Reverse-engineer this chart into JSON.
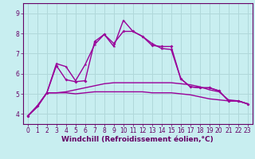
{
  "background_color": "#c8eef0",
  "grid_color": "#b0d8da",
  "line_color": "#990099",
  "spine_color": "#660066",
  "xlabel": "Windchill (Refroidissement éolien,°C)",
  "xlim": [
    -0.5,
    23.5
  ],
  "ylim": [
    3.5,
    9.5
  ],
  "yticks": [
    4,
    5,
    6,
    7,
    8,
    9
  ],
  "xticks": [
    0,
    1,
    2,
    3,
    4,
    5,
    6,
    7,
    8,
    9,
    10,
    11,
    12,
    13,
    14,
    15,
    16,
    17,
    18,
    19,
    20,
    21,
    22,
    23
  ],
  "line1_x": [
    0,
    1,
    2,
    3,
    4,
    5,
    6,
    7,
    8,
    9,
    10,
    11,
    12,
    13,
    14,
    15,
    16,
    17,
    18,
    19,
    20,
    21,
    22,
    23
  ],
  "line1_y": [
    3.9,
    4.4,
    5.05,
    6.5,
    6.35,
    5.65,
    6.45,
    7.45,
    7.95,
    7.35,
    8.65,
    8.1,
    7.85,
    7.5,
    7.25,
    7.2,
    5.75,
    5.35,
    5.3,
    5.3,
    5.15,
    4.65,
    4.65,
    4.5
  ],
  "line2_x": [
    0,
    1,
    2,
    3,
    4,
    5,
    6,
    7,
    8,
    9,
    10,
    11,
    12,
    13,
    14,
    15,
    16,
    17,
    18,
    19,
    20,
    21,
    22,
    23
  ],
  "line2_y": [
    3.9,
    4.4,
    5.05,
    6.4,
    5.7,
    5.6,
    5.65,
    7.6,
    7.95,
    7.5,
    8.1,
    8.1,
    7.85,
    7.4,
    7.35,
    7.35,
    5.75,
    5.35,
    5.3,
    5.3,
    5.15,
    4.65,
    4.65,
    4.5
  ],
  "line3_x": [
    0,
    1,
    2,
    3,
    4,
    5,
    6,
    7,
    8,
    9,
    10,
    11,
    12,
    13,
    14,
    15,
    16,
    17,
    18,
    19,
    20,
    21,
    22,
    23
  ],
  "line3_y": [
    3.9,
    4.35,
    5.05,
    5.05,
    5.1,
    5.2,
    5.3,
    5.4,
    5.5,
    5.55,
    5.55,
    5.55,
    5.55,
    5.55,
    5.55,
    5.55,
    5.5,
    5.45,
    5.35,
    5.2,
    5.1,
    4.7,
    4.65,
    4.5
  ],
  "line4_x": [
    0,
    1,
    2,
    3,
    4,
    5,
    6,
    7,
    8,
    9,
    10,
    11,
    12,
    13,
    14,
    15,
    16,
    17,
    18,
    19,
    20,
    21,
    22,
    23
  ],
  "line4_y": [
    3.9,
    4.35,
    5.05,
    5.05,
    5.05,
    5.0,
    5.05,
    5.1,
    5.1,
    5.1,
    5.1,
    5.1,
    5.1,
    5.05,
    5.05,
    5.05,
    5.0,
    4.95,
    4.85,
    4.75,
    4.7,
    4.65,
    4.65,
    4.5
  ],
  "tick_fontsize": 5.5,
  "label_fontsize": 6.5
}
